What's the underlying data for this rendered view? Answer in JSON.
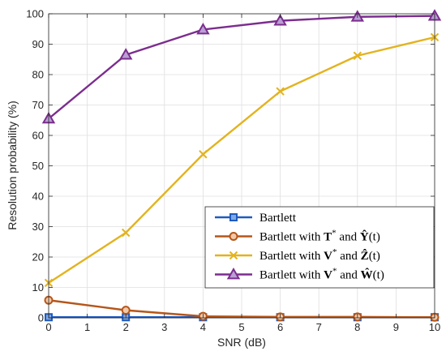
{
  "chart_data": {
    "type": "line",
    "title": "",
    "xlabel": "SNR (dB)",
    "ylabel": "Resolution probability (%)",
    "xlim": [
      0,
      10
    ],
    "ylim": [
      0,
      100
    ],
    "xticks": [
      0,
      1,
      2,
      3,
      4,
      5,
      6,
      7,
      8,
      9,
      10
    ],
    "yticks": [
      0,
      10,
      20,
      30,
      40,
      50,
      60,
      70,
      80,
      90,
      100
    ],
    "grid": true,
    "legend_position": "bottom-right",
    "x": [
      0,
      2,
      4,
      6,
      8,
      10
    ],
    "series": [
      {
        "name": "Bartlett",
        "legend_main": "Bartlett",
        "values": [
          0.2,
          0.2,
          0.2,
          0.2,
          0.2,
          0.2
        ],
        "color": "#1f5bbf",
        "marker": "square"
      },
      {
        "name": "Bartlett with T* and Ŷ(t)",
        "legend_main": "Bartlett with ",
        "legend_sym1": "T",
        "legend_sup": "*",
        "legend_and": " and ",
        "legend_sym2": "Ŷ",
        "legend_arg": "(t)",
        "values": [
          5.8,
          2.5,
          0.5,
          0.3,
          0.3,
          0.2
        ],
        "color": "#b5561a",
        "marker": "circle"
      },
      {
        "name": "Bartlett with V* and Ẑ(t)",
        "legend_main": "Bartlett with ",
        "legend_sym1": "V",
        "legend_sup": "*",
        "legend_and": " and ",
        "legend_sym2": "Ẑ",
        "legend_arg": "(t)",
        "values": [
          11.5,
          28.0,
          53.8,
          74.5,
          86.2,
          92.3
        ],
        "color": "#e3b31f",
        "marker": "x"
      },
      {
        "name": "Bartlett with V* and Ŵ(t)",
        "legend_main": "Bartlett with ",
        "legend_sym1": "V",
        "legend_sup": "*",
        "legend_and": " and ",
        "legend_sym2": "Ŵ",
        "legend_arg": "(t)",
        "values": [
          65.5,
          86.5,
          94.8,
          97.7,
          99.0,
          99.3
        ],
        "color": "#7b2d8e",
        "marker": "triangle"
      }
    ]
  }
}
